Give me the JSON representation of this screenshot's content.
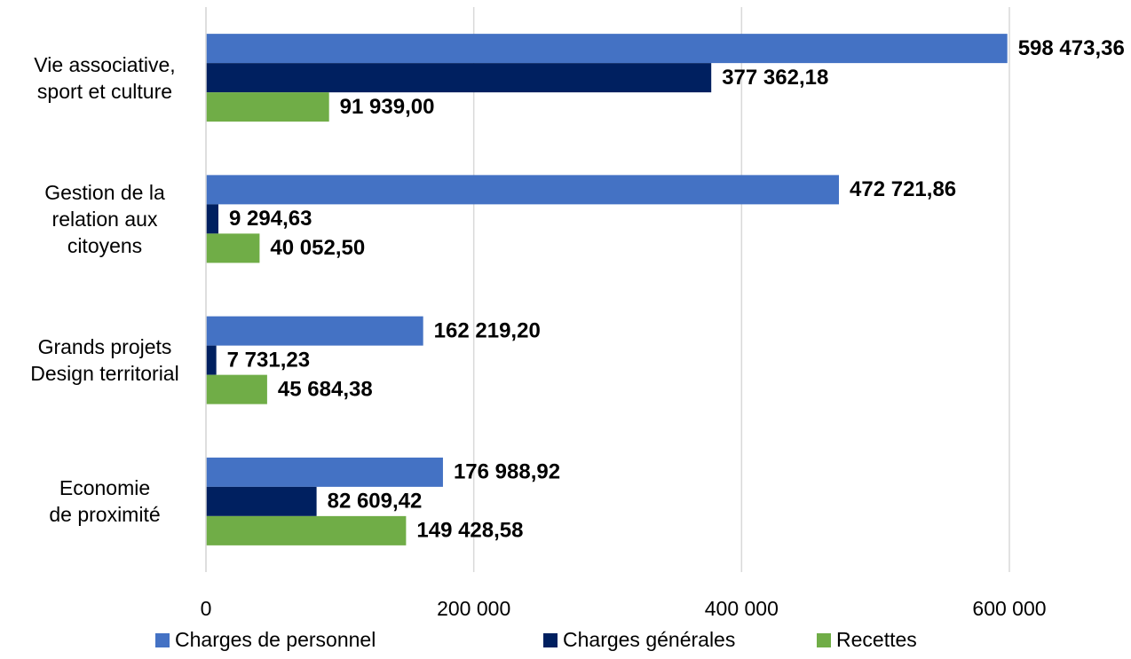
{
  "chart_data": {
    "type": "bar",
    "orientation": "horizontal",
    "categories": [
      "Vie associative,\nsport et culture",
      "Gestion de la\nrelation aux\ncitoyens",
      "Grands projets\nDesign territorial",
      "Economie\nde proximité"
    ],
    "series": [
      {
        "name": "Charges de personnel",
        "color": "#4472c4",
        "values": [
          598473.36,
          472721.86,
          162219.2,
          176988.92
        ],
        "value_labels": [
          "598 473,36",
          "472 721,86",
          "162 219,20",
          "176 988,92"
        ]
      },
      {
        "name": "Charges générales",
        "color": "#002060",
        "values": [
          377362.18,
          9294.63,
          7731.23,
          82609.42
        ],
        "value_labels": [
          "377 362,18",
          "9 294,63",
          "7 731,23",
          "82 609,42"
        ]
      },
      {
        "name": "Recettes",
        "color": "#70ad47",
        "values": [
          91939.0,
          40052.5,
          45684.38,
          149428.58
        ],
        "value_labels": [
          "91 939,00",
          "40 052,50",
          "45 684,38",
          "149 428,58"
        ]
      }
    ],
    "xlim": [
      0,
      600000
    ],
    "xticks": [
      0,
      {
        "value": 200000,
        "label": "200 000"
      },
      {
        "value": 400000,
        "label": "400 000"
      },
      {
        "value": 600000,
        "label": "600 000"
      }
    ],
    "grid": true,
    "legend": "bottom"
  }
}
